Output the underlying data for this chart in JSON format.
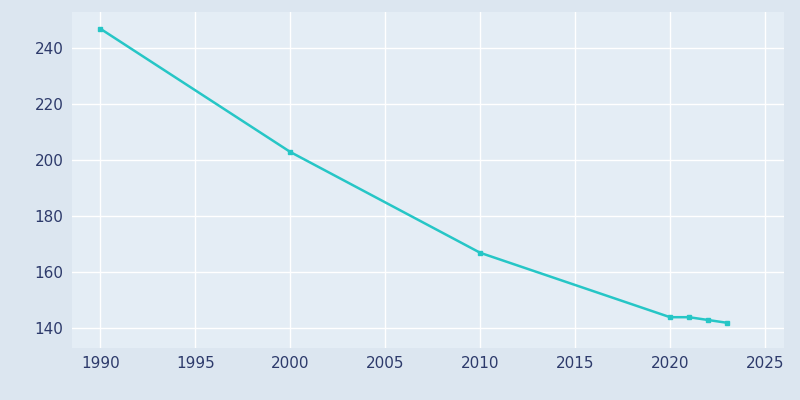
{
  "years": [
    1990,
    2000,
    2010,
    2020,
    2021,
    2022,
    2023
  ],
  "population": [
    247,
    203,
    167,
    144,
    144,
    143,
    142
  ],
  "line_color": "#26c6c6",
  "marker": "s",
  "marker_size": 3.5,
  "line_width": 1.8,
  "fig_bg_color": "#dce6f0",
  "axes_bg_color": "#e4edf5",
  "grid_color": "#ffffff",
  "tick_color": "#2d3a6b",
  "tick_fontsize": 11,
  "xlim": [
    1988.5,
    2026
  ],
  "ylim": [
    133,
    253
  ],
  "yticks": [
    140,
    160,
    180,
    200,
    220,
    240
  ],
  "xticks": [
    1990,
    1995,
    2000,
    2005,
    2010,
    2015,
    2020,
    2025
  ]
}
